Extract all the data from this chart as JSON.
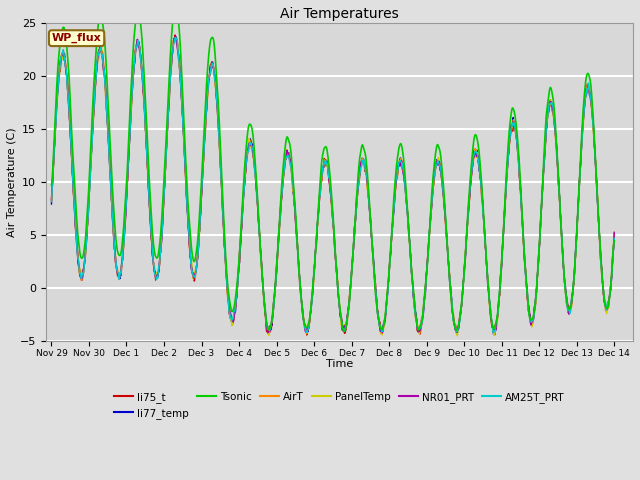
{
  "title": "Air Temperatures",
  "xlabel": "Time",
  "ylabel": "Air Temperature (C)",
  "ylim": [
    -5,
    25
  ],
  "xlim_start": -0.15,
  "xlim_end": 15.5,
  "fig_width": 6.4,
  "fig_height": 4.8,
  "dpi": 100,
  "background_color": "#e0e0e0",
  "plot_bg_color": "#d8d8d8",
  "grid_color": "white",
  "series": [
    {
      "name": "li75_t",
      "color": "#cc0000",
      "lw": 1.0
    },
    {
      "name": "li77_temp",
      "color": "#0000cc",
      "lw": 1.0
    },
    {
      "name": "Tsonic",
      "color": "#00cc00",
      "lw": 1.2
    },
    {
      "name": "AirT",
      "color": "#ff8800",
      "lw": 1.0
    },
    {
      "name": "PanelTemp",
      "color": "#cccc00",
      "lw": 1.0
    },
    {
      "name": "NR01_PRT",
      "color": "#aa00aa",
      "lw": 1.0
    },
    {
      "name": "AM25T_PRT",
      "color": "#00cccc",
      "lw": 1.0
    }
  ],
  "annotation_text": "WP_flux",
  "xtick_labels": [
    "Nov 29",
    "Nov 30",
    "Dec 1",
    "Dec 2",
    "Dec 3",
    "Dec 4",
    "Dec 5",
    "Dec 6",
    "Dec 7",
    "Dec 8",
    "Dec 9",
    "Dec 10",
    "Dec 11",
    "Dec 12",
    "Dec 13",
    "Dec 14"
  ],
  "xtick_positions": [
    0,
    1,
    2,
    3,
    4,
    5,
    6,
    7,
    8,
    9,
    10,
    11,
    12,
    13,
    14,
    15
  ],
  "ytick_positions": [
    -5,
    0,
    5,
    10,
    15,
    20,
    25
  ],
  "legend_ncol": 6,
  "legend_fontsize": 7.5
}
